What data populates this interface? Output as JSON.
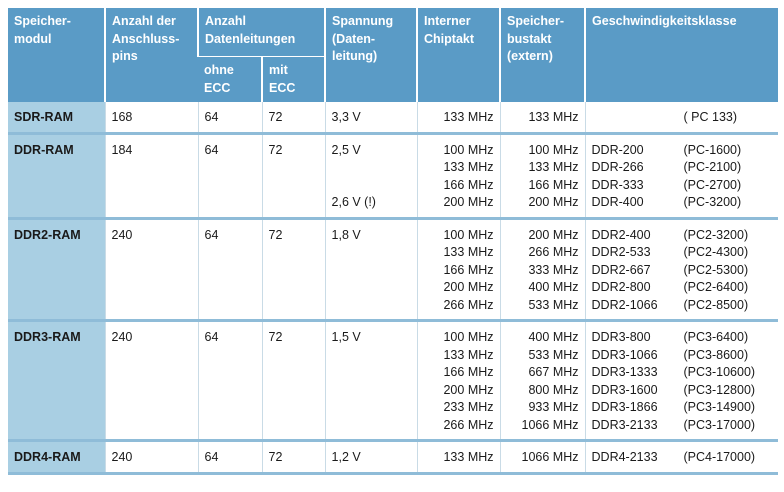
{
  "table": {
    "header": {
      "module": [
        "Speicher-",
        "modul"
      ],
      "pins": [
        "Anzahl der",
        "Anschluss-",
        "pins"
      ],
      "datalines": [
        "Anzahl",
        "Datenleitungen"
      ],
      "without_ecc": [
        "ohne",
        "ECC"
      ],
      "with_ecc": [
        "mit",
        "ECC"
      ],
      "voltage": [
        "Spannung",
        "(Daten-",
        "leitung)"
      ],
      "chip_clock": [
        "Interner",
        "Chiptakt"
      ],
      "bus_clock": [
        "Speicher-",
        "bustakt",
        "(extern)"
      ],
      "speed_class": [
        "Geschwindigkeitsklasse"
      ]
    },
    "rows": [
      {
        "module": "SDR-RAM",
        "pins": "168",
        "without_ecc": "64",
        "with_ecc": "72",
        "voltage": [
          "3,3 V"
        ],
        "chip_clock": [
          "133 MHz"
        ],
        "bus_clock": [
          "133 MHz"
        ],
        "speed_class": [
          [
            null,
            "( PC 133)"
          ]
        ]
      },
      {
        "module": "DDR-RAM",
        "pins": "184",
        "without_ecc": "64",
        "with_ecc": "72",
        "voltage": [
          "2,5 V",
          null,
          null,
          "2,6 V (!)"
        ],
        "chip_clock": [
          "100 MHz",
          "133 MHz",
          "166 MHz",
          "200 MHz"
        ],
        "bus_clock": [
          "100 MHz",
          "133 MHz",
          "166 MHz",
          "200 MHz"
        ],
        "speed_class": [
          [
            "DDR-200",
            "(PC-1600)"
          ],
          [
            "DDR-266",
            "(PC-2100)"
          ],
          [
            "DDR-333",
            "(PC-2700)"
          ],
          [
            "DDR-400",
            "(PC-3200)"
          ]
        ]
      },
      {
        "module": "DDR2-RAM",
        "pins": "240",
        "without_ecc": "64",
        "with_ecc": "72",
        "voltage": [
          "1,8 V"
        ],
        "chip_clock": [
          "100 MHz",
          "133 MHz",
          "166 MHz",
          "200 MHz",
          "266 MHz"
        ],
        "bus_clock": [
          "200 MHz",
          "266 MHz",
          "333 MHz",
          "400 MHz",
          "533 MHz"
        ],
        "speed_class": [
          [
            "DDR2-400",
            "(PC2-3200)"
          ],
          [
            "DDR2-533",
            "(PC2-4300)"
          ],
          [
            "DDR2-667",
            "(PC2-5300)"
          ],
          [
            "DDR2-800",
            "(PC2-6400)"
          ],
          [
            "DDR2-1066",
            "(PC2-8500)"
          ]
        ]
      },
      {
        "module": "DDR3-RAM",
        "pins": "240",
        "without_ecc": "64",
        "with_ecc": "72",
        "voltage": [
          "1,5 V"
        ],
        "chip_clock": [
          "100 MHz",
          "133 MHz",
          "166 MHz",
          "200 MHz",
          "233 MHz",
          "266 MHz"
        ],
        "bus_clock": [
          "400 MHz",
          "533 MHz",
          "667 MHz",
          "800 MHz",
          "933 MHz",
          "1066 MHz"
        ],
        "speed_class": [
          [
            "DDR3-800",
            "(PC3-6400)"
          ],
          [
            "DDR3-1066",
            "(PC3-8600)"
          ],
          [
            "DDR3-1333",
            "(PC3-10600)"
          ],
          [
            "DDR3-1600",
            "(PC3-12800)"
          ],
          [
            "DDR3-1866",
            "(PC3-14900)"
          ],
          [
            "DDR3-2133",
            "(PC3-17000)"
          ]
        ]
      },
      {
        "module": "DDR4-RAM",
        "pins": "240",
        "without_ecc": "64",
        "with_ecc": "72",
        "voltage": [
          "1,2 V"
        ],
        "chip_clock": [
          "133 MHz"
        ],
        "bus_clock": [
          "1066 MHz"
        ],
        "speed_class": [
          [
            "DDR4-2133",
            "(PC4-17000)"
          ]
        ]
      }
    ]
  }
}
